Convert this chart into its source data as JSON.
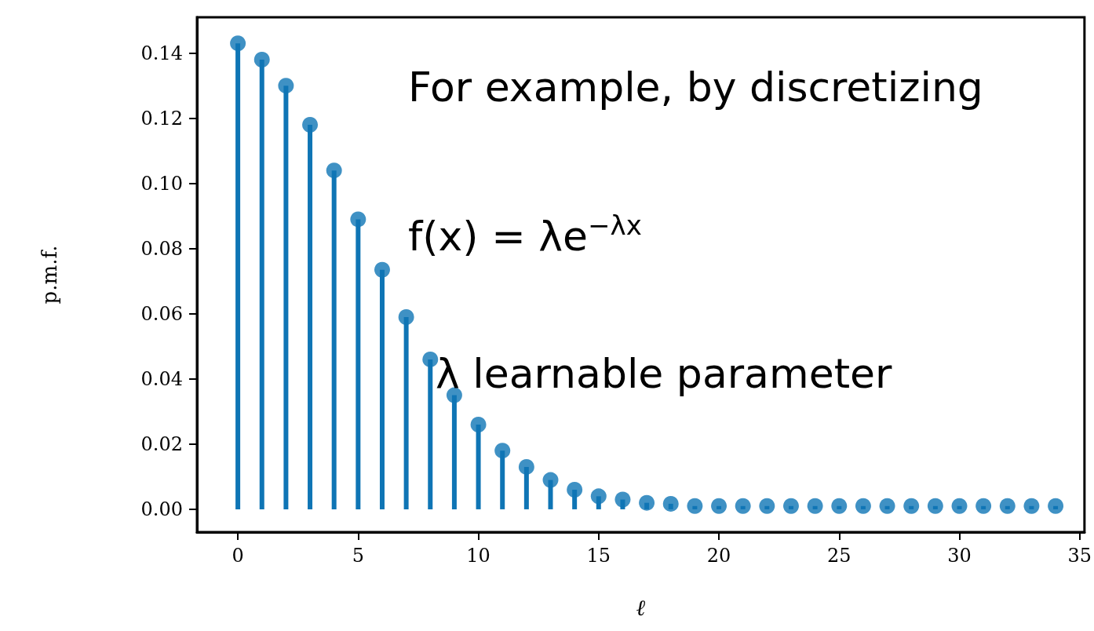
{
  "chart_data": {
    "type": "lollipop",
    "xlabel": "ℓ",
    "ylabel": "p.m.f.",
    "x": [
      0,
      1,
      2,
      3,
      4,
      5,
      6,
      7,
      8,
      9,
      10,
      11,
      12,
      13,
      14,
      15,
      16,
      17,
      18,
      19,
      20,
      21,
      22,
      23,
      24,
      25,
      26,
      27,
      28,
      29,
      30,
      31,
      32,
      33,
      34
    ],
    "series": [
      {
        "color": "#0f75b5",
        "values": [
          0.143,
          0.138,
          0.13,
          0.118,
          0.104,
          0.089,
          0.0735,
          0.059,
          0.046,
          0.035,
          0.026,
          0.018,
          0.013,
          0.009,
          0.006,
          0.004,
          0.003,
          0.002,
          0.0017,
          0.001,
          0.001,
          0.001,
          0.001,
          0.001,
          0.001,
          0.001,
          0.001,
          0.001,
          0.001,
          0.001,
          0.001,
          0.001,
          0.001,
          0.001,
          0.001
        ]
      }
    ],
    "xlim": [
      -1.7,
      35.2
    ],
    "xticks": [
      0,
      5,
      10,
      15,
      20,
      25,
      30,
      35
    ],
    "ylim": [
      -0.007,
      0.151
    ],
    "yticks": [
      {
        "value": 0,
        "label": "0.00"
      },
      0.02,
      0.04,
      0.06,
      0.08,
      {
        "value": 0.1,
        "label": "0.10"
      },
      0.12,
      0.14
    ],
    "marker": "circle",
    "grid": false,
    "annotations": [
      "For example, by discretizing",
      "f(x) = λe$^{−λx}$",
      "λ learnable parameter"
    ]
  }
}
